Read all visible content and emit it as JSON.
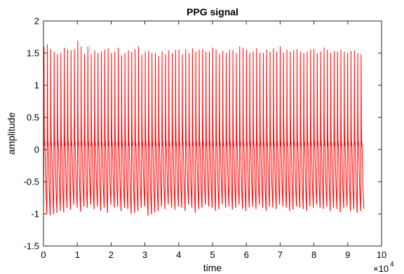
{
  "chart_data": {
    "type": "line",
    "title": "PPG signal",
    "xlabel": "time",
    "ylabel": "amplitude",
    "x_exponent_label": "×10",
    "x_exponent_power": "4",
    "xlim": [
      0,
      100000
    ],
    "ylim": [
      -1.5,
      2
    ],
    "xticks": [
      0,
      10000,
      20000,
      30000,
      40000,
      50000,
      60000,
      70000,
      80000,
      90000,
      100000
    ],
    "xtick_labels": [
      "0",
      "1",
      "2",
      "3",
      "4",
      "5",
      "6",
      "7",
      "8",
      "9",
      "10"
    ],
    "yticks": [
      -1.5,
      -1,
      -0.5,
      0,
      0.5,
      1,
      1.5,
      2
    ],
    "ytick_labels": [
      "-1.5",
      "-1",
      "-0.5",
      "0",
      "0.5",
      "1",
      "1.5",
      "2"
    ],
    "grid": false,
    "series": [
      {
        "color": "#ff0000",
        "x_start": 0,
        "x_end": 94800,
        "cycles": 95,
        "peaks": [
          1.6,
          1.63,
          1.56,
          1.52,
          1.48,
          1.5,
          1.58,
          1.55,
          1.54,
          1.56,
          1.69,
          1.6,
          1.48,
          1.6,
          1.48,
          1.54,
          1.5,
          1.52,
          1.55,
          1.57,
          1.5,
          1.52,
          1.58,
          1.46,
          1.5,
          1.54,
          1.52,
          1.56,
          1.6,
          1.47,
          1.52,
          1.53,
          1.5,
          1.5,
          1.45,
          1.52,
          1.48,
          1.54,
          1.5,
          1.55,
          1.55,
          1.48,
          1.55,
          1.5,
          1.57,
          1.52,
          1.55,
          1.56,
          1.52,
          1.52,
          1.58,
          1.55,
          1.48,
          1.53,
          1.5,
          1.55,
          1.54,
          1.5,
          1.6,
          1.58,
          1.55,
          1.5,
          1.52,
          1.57,
          1.5,
          1.5,
          1.55,
          1.52,
          1.57,
          1.52,
          1.6,
          1.5,
          1.55,
          1.52,
          1.54,
          1.56,
          1.52,
          1.5,
          1.52,
          1.55,
          1.56,
          1.5,
          1.52,
          1.58,
          1.55,
          1.5,
          1.53,
          1.52,
          1.55,
          1.52,
          1.5,
          1.53,
          1.54,
          1.5,
          1.48
        ],
        "troughs": [
          -0.92,
          -1.0,
          -1.02,
          -1.0,
          -0.98,
          -0.95,
          -0.97,
          -0.9,
          -0.93,
          -0.85,
          -0.9,
          -0.96,
          -0.88,
          -0.9,
          -0.85,
          -0.92,
          -0.88,
          -0.95,
          -0.9,
          -0.98,
          -0.85,
          -0.9,
          -0.88,
          -0.95,
          -0.9,
          -0.92,
          -1.0,
          -0.98,
          -0.95,
          -0.9,
          -0.88,
          -1.02,
          -1.0,
          -0.97,
          -0.95,
          -0.88,
          -0.92,
          -0.85,
          -0.9,
          -0.93,
          -0.88,
          -0.9,
          -0.95,
          -0.85,
          -0.9,
          -0.98,
          -0.92,
          -0.9,
          -0.85,
          -0.88,
          -0.9,
          -0.95,
          -0.92,
          -0.85,
          -0.9,
          -0.88,
          -0.93,
          -0.9,
          -0.85,
          -0.92,
          -0.95,
          -0.9,
          -0.88,
          -0.92,
          -0.85,
          -0.9,
          -0.95,
          -0.88,
          -0.9,
          -0.92,
          -0.85,
          -0.88,
          -0.9,
          -0.95,
          -0.93,
          -0.88,
          -0.9,
          -0.92,
          -0.95,
          -0.88,
          -0.9,
          -0.85,
          -0.9,
          -0.92,
          -0.88,
          -0.95,
          -0.9,
          -0.92,
          -0.97,
          -0.9,
          -0.88,
          -0.95,
          -0.92,
          -0.98,
          -0.95
        ]
      }
    ]
  }
}
